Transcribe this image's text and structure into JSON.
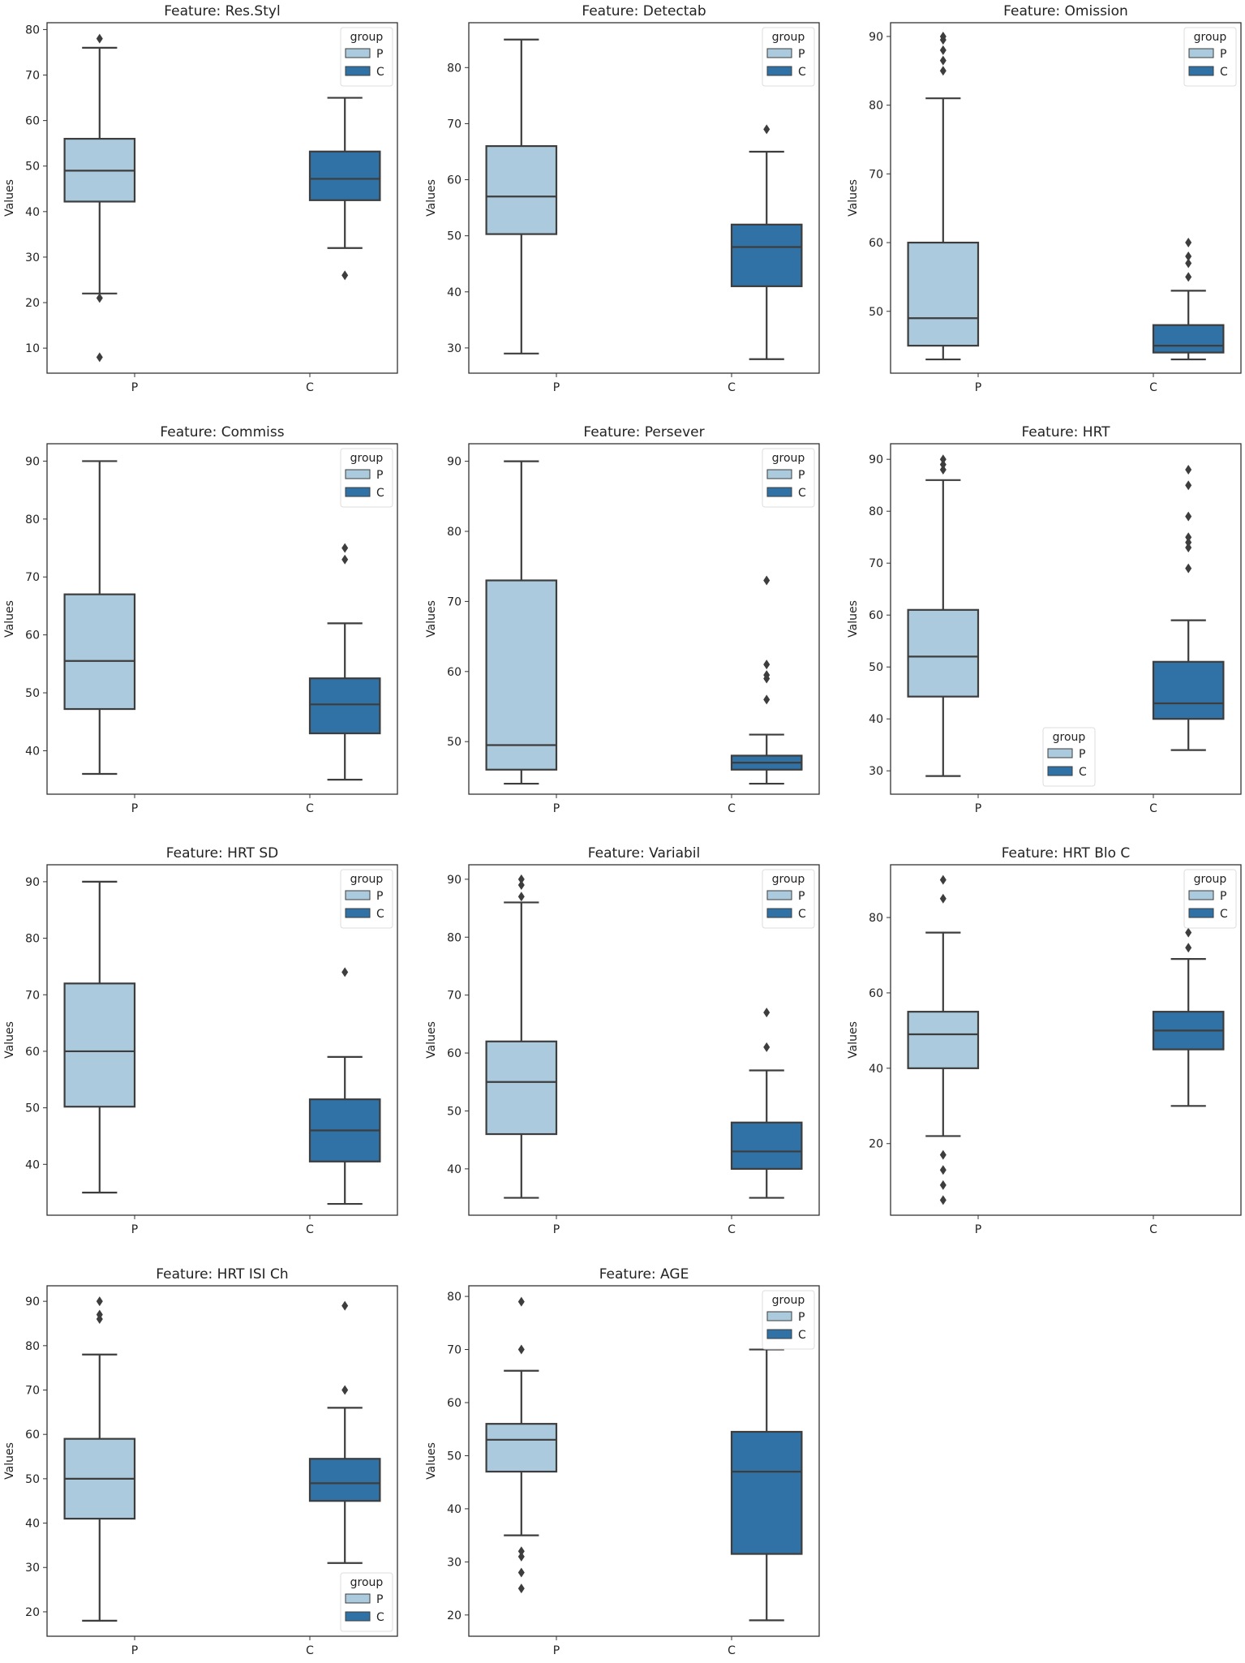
{
  "colors": {
    "P": "#abcadd",
    "C": "#3072a6",
    "line": "#3d3d3d"
  },
  "chart_data": [
    {
      "type": "box",
      "title": "Feature: Res.Styl",
      "ylabel": "Values",
      "categories": [
        "P",
        "C"
      ],
      "ylim": [
        4.5,
        81.5
      ],
      "yticks": [
        10,
        20,
        30,
        40,
        50,
        60,
        70,
        80
      ],
      "legend": {
        "title": "group",
        "entries": [
          "P",
          "C"
        ],
        "placement": "top-right"
      },
      "series": [
        {
          "name": "P",
          "whisker_low": 22,
          "q1": 42.2,
          "median": 49,
          "q3": 56,
          "whisker_high": 76,
          "outliers": [
            78,
            21,
            8
          ]
        },
        {
          "name": "C",
          "whisker_low": 32,
          "q1": 42.5,
          "median": 47.2,
          "q3": 53.2,
          "whisker_high": 65,
          "outliers": [
            26
          ]
        }
      ]
    },
    {
      "type": "box",
      "title": "Feature: Detectab",
      "ylabel": "Values",
      "categories": [
        "P",
        "C"
      ],
      "ylim": [
        25.5,
        88
      ],
      "yticks": [
        30,
        40,
        50,
        60,
        70,
        80
      ],
      "legend": {
        "title": "group",
        "entries": [
          "P",
          "C"
        ],
        "placement": "top-right"
      },
      "series": [
        {
          "name": "P",
          "whisker_low": 29,
          "q1": 50.3,
          "median": 57,
          "q3": 66,
          "whisker_high": 85,
          "outliers": []
        },
        {
          "name": "C",
          "whisker_low": 28,
          "q1": 41,
          "median": 48,
          "q3": 52,
          "whisker_high": 65,
          "outliers": [
            69
          ]
        }
      ]
    },
    {
      "type": "box",
      "title": "Feature: Omission",
      "ylabel": "Values",
      "categories": [
        "P",
        "C"
      ],
      "ylim": [
        41,
        92
      ],
      "yticks": [
        50,
        60,
        70,
        80,
        90
      ],
      "legend": {
        "title": "group",
        "entries": [
          "P",
          "C"
        ],
        "placement": "top-right"
      },
      "series": [
        {
          "name": "P",
          "whisker_low": 43,
          "q1": 45,
          "median": 49,
          "q3": 60,
          "whisker_high": 81,
          "outliers": [
            85,
            86.5,
            88,
            89.5,
            90
          ]
        },
        {
          "name": "C",
          "whisker_low": 43,
          "q1": 44,
          "median": 45,
          "q3": 48,
          "whisker_high": 53,
          "outliers": [
            55,
            57,
            58,
            60
          ]
        }
      ]
    },
    {
      "type": "box",
      "title": "Feature: Commiss",
      "ylabel": "Values",
      "categories": [
        "P",
        "C"
      ],
      "ylim": [
        32.5,
        93
      ],
      "yticks": [
        40,
        50,
        60,
        70,
        80,
        90
      ],
      "legend": {
        "title": "group",
        "entries": [
          "P",
          "C"
        ],
        "placement": "top-right"
      },
      "series": [
        {
          "name": "P",
          "whisker_low": 36,
          "q1": 47.2,
          "median": 55.5,
          "q3": 67,
          "whisker_high": 90,
          "outliers": []
        },
        {
          "name": "C",
          "whisker_low": 35,
          "q1": 43,
          "median": 48,
          "q3": 52.5,
          "whisker_high": 62,
          "outliers": [
            73,
            75
          ]
        }
      ]
    },
    {
      "type": "box",
      "title": "Feature: Persever",
      "ylabel": "Values",
      "categories": [
        "P",
        "C"
      ],
      "ylim": [
        42.5,
        92.5
      ],
      "yticks": [
        50,
        60,
        70,
        80,
        90
      ],
      "legend": {
        "title": "group",
        "entries": [
          "P",
          "C"
        ],
        "placement": "top-right"
      },
      "series": [
        {
          "name": "P",
          "whisker_low": 44,
          "q1": 46,
          "median": 49.5,
          "q3": 73,
          "whisker_high": 90,
          "outliers": []
        },
        {
          "name": "C",
          "whisker_low": 44,
          "q1": 46,
          "median": 47,
          "q3": 48,
          "whisker_high": 51,
          "outliers": [
            56,
            59,
            59.5,
            61,
            73
          ]
        }
      ]
    },
    {
      "type": "box",
      "title": "Feature: HRT",
      "ylabel": "Values",
      "categories": [
        "P",
        "C"
      ],
      "ylim": [
        25.5,
        93
      ],
      "yticks": [
        30,
        40,
        50,
        60,
        70,
        80,
        90
      ],
      "legend": {
        "title": "group",
        "entries": [
          "P",
          "C"
        ],
        "placement": "lower-center"
      },
      "series": [
        {
          "name": "P",
          "whisker_low": 29,
          "q1": 44.3,
          "median": 52,
          "q3": 61,
          "whisker_high": 86,
          "outliers": [
            88,
            89,
            90
          ]
        },
        {
          "name": "C",
          "whisker_low": 34,
          "q1": 40,
          "median": 43,
          "q3": 51,
          "whisker_high": 59,
          "outliers": [
            69,
            73,
            74,
            75,
            79,
            85,
            88
          ]
        }
      ]
    },
    {
      "type": "box",
      "title": "Feature: HRT SD",
      "ylabel": "Values",
      "categories": [
        "P",
        "C"
      ],
      "ylim": [
        31,
        93
      ],
      "yticks": [
        40,
        50,
        60,
        70,
        80,
        90
      ],
      "legend": {
        "title": "group",
        "entries": [
          "P",
          "C"
        ],
        "placement": "top-right"
      },
      "series": [
        {
          "name": "P",
          "whisker_low": 35,
          "q1": 50.2,
          "median": 60,
          "q3": 72,
          "whisker_high": 90,
          "outliers": []
        },
        {
          "name": "C",
          "whisker_low": 33,
          "q1": 40.5,
          "median": 46,
          "q3": 51.5,
          "whisker_high": 59,
          "outliers": [
            74
          ]
        }
      ]
    },
    {
      "type": "box",
      "title": "Feature: Variabil",
      "ylabel": "Values",
      "categories": [
        "P",
        "C"
      ],
      "ylim": [
        32,
        92.5
      ],
      "yticks": [
        40,
        50,
        60,
        70,
        80,
        90
      ],
      "legend": {
        "title": "group",
        "entries": [
          "P",
          "C"
        ],
        "placement": "top-right"
      },
      "series": [
        {
          "name": "P",
          "whisker_low": 35,
          "q1": 46,
          "median": 55,
          "q3": 62,
          "whisker_high": 86,
          "outliers": [
            87,
            89,
            90
          ]
        },
        {
          "name": "C",
          "whisker_low": 35,
          "q1": 40,
          "median": 43,
          "q3": 48,
          "whisker_high": 57,
          "outliers": [
            61,
            67
          ]
        }
      ]
    },
    {
      "type": "box",
      "title": "Feature: HRT Blo C",
      "ylabel": "Values",
      "categories": [
        "P",
        "C"
      ],
      "ylim": [
        1,
        94
      ],
      "yticks": [
        20,
        40,
        60,
        80
      ],
      "legend": {
        "title": "group",
        "entries": [
          "P",
          "C"
        ],
        "placement": "top-right"
      },
      "series": [
        {
          "name": "P",
          "whisker_low": 22,
          "q1": 40,
          "median": 49,
          "q3": 55,
          "whisker_high": 76,
          "outliers": [
            5,
            9,
            13,
            17,
            85,
            90
          ]
        },
        {
          "name": "C",
          "whisker_low": 30,
          "q1": 45,
          "median": 50,
          "q3": 55,
          "whisker_high": 69,
          "outliers": [
            72,
            76
          ]
        }
      ]
    },
    {
      "type": "box",
      "title": "Feature: HRT ISI Ch",
      "ylabel": "Values",
      "categories": [
        "P",
        "C"
      ],
      "ylim": [
        14.5,
        93.5
      ],
      "yticks": [
        20,
        30,
        40,
        50,
        60,
        70,
        80,
        90
      ],
      "legend": {
        "title": "group",
        "entries": [
          "P",
          "C"
        ],
        "placement": "lower-right"
      },
      "series": [
        {
          "name": "P",
          "whisker_low": 18,
          "q1": 41,
          "median": 50,
          "q3": 59,
          "whisker_high": 78,
          "outliers": [
            86,
            87,
            90
          ]
        },
        {
          "name": "C",
          "whisker_low": 31,
          "q1": 45,
          "median": 49,
          "q3": 54.5,
          "whisker_high": 66,
          "outliers": [
            70,
            89
          ]
        }
      ]
    },
    {
      "type": "box",
      "title": "Feature: AGE",
      "ylabel": "Values",
      "categories": [
        "P",
        "C"
      ],
      "ylim": [
        16,
        82
      ],
      "yticks": [
        20,
        30,
        40,
        50,
        60,
        70,
        80
      ],
      "legend": {
        "title": "group",
        "entries": [
          "P",
          "C"
        ],
        "placement": "top-right"
      },
      "series": [
        {
          "name": "P",
          "whisker_low": 35,
          "q1": 47,
          "median": 53,
          "q3": 56,
          "whisker_high": 66,
          "outliers": [
            25,
            28,
            31,
            32,
            70,
            79
          ]
        },
        {
          "name": "C",
          "whisker_low": 19,
          "q1": 31.5,
          "median": 47,
          "q3": 54.5,
          "whisker_high": 70,
          "outliers": []
        }
      ]
    }
  ]
}
